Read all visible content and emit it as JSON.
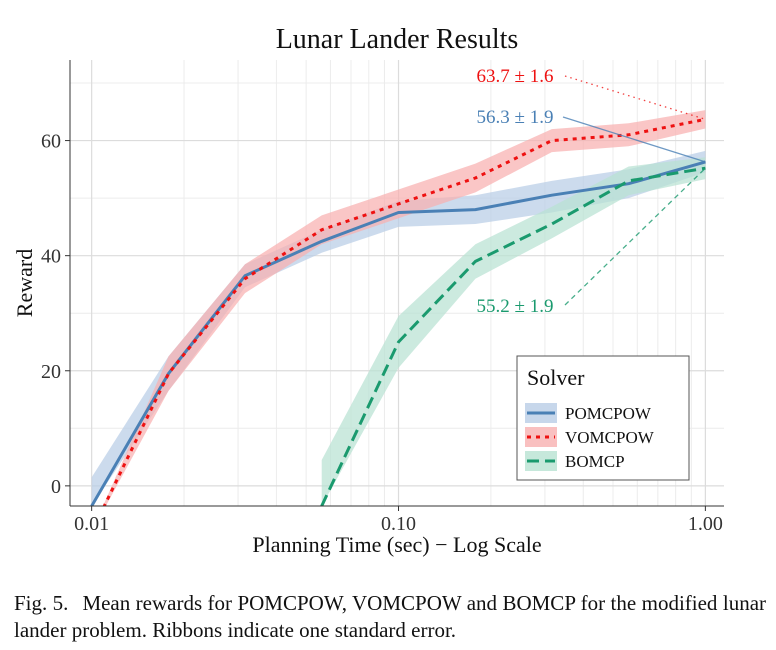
{
  "chart_data": {
    "type": "line",
    "title": "Lunar Lander Results",
    "xlabel": "Planning Time (sec) − Log Scale",
    "ylabel": "Reward",
    "xscale": "log",
    "xlim": [
      0.0085,
      1.15
    ],
    "ylim": [
      -3.5,
      74
    ],
    "xticks": [
      0.01,
      0.1,
      1.0
    ],
    "xtick_labels": [
      "0.01",
      "0.10",
      "1.00"
    ],
    "yticks": [
      0,
      20,
      40,
      60
    ],
    "ytick_labels": [
      "0",
      "20",
      "40",
      "60"
    ],
    "grid": true,
    "legend": {
      "title": "Solver",
      "placement": "bottom-right"
    },
    "series": [
      {
        "name": "POMCPOW",
        "color": "#4a80b5",
        "ribbon_color": "#b9cde6",
        "dash": "solid",
        "x": [
          0.01,
          0.0178,
          0.0316,
          0.0562,
          0.1,
          0.178,
          0.316,
          0.562,
          1.0
        ],
        "y": [
          -3.5,
          19.5,
          36.5,
          42.5,
          47.5,
          48.0,
          50.5,
          52.5,
          56.3
        ],
        "lower": [
          -3.5,
          16.5,
          34.5,
          40.5,
          45.0,
          45.5,
          47.5,
          50.0,
          54.5
        ],
        "upper": [
          1.5,
          22.5,
          38.5,
          44.5,
          49.5,
          50.5,
          53.0,
          55.0,
          58.2
        ]
      },
      {
        "name": "VOMCPOW",
        "color": "#ee1111",
        "ribbon_color": "#f8b0b0",
        "dash": "dot",
        "x": [
          0.01,
          0.0178,
          0.0316,
          0.0562,
          0.1,
          0.178,
          0.316,
          0.562,
          1.0
        ],
        "y": [
          -8,
          19.5,
          36.0,
          44.5,
          49.0,
          53.5,
          60.0,
          61.0,
          63.7
        ],
        "lower": [
          -8,
          16.5,
          33.5,
          42.0,
          46.5,
          51.0,
          58.0,
          59.0,
          62.1
        ],
        "upper": [
          -8,
          22.5,
          38.5,
          47.0,
          51.5,
          56.0,
          62.0,
          63.0,
          65.3
        ]
      },
      {
        "name": "BOMCP",
        "color": "#1a9a6e",
        "ribbon_color": "#b8e2d2",
        "dash": "dash",
        "x": [
          0.0562,
          0.1,
          0.178,
          0.316,
          0.562,
          1.0
        ],
        "y": [
          -3.5,
          25.0,
          39.0,
          45.5,
          53.0,
          55.2
        ],
        "lower": [
          -3.5,
          20.5,
          36.0,
          43.0,
          50.5,
          53.3
        ],
        "upper": [
          4.5,
          29.5,
          42.0,
          48.5,
          55.5,
          57.1
        ]
      }
    ],
    "annotations": [
      {
        "text": "63.7 ± 1.6",
        "series": "VOMCPOW",
        "color": "#ee1111",
        "line": "dotted"
      },
      {
        "text": "56.3 ± 1.9",
        "series": "POMCPOW",
        "color": "#4a80b5",
        "line": "solid"
      },
      {
        "text": "55.2 ± 1.9",
        "series": "BOMCP",
        "color": "#1a9a6e",
        "line": "dashed"
      }
    ]
  },
  "caption": {
    "label": "Fig. 5.",
    "text": "Mean rewards for POMCPOW, VOMCPOW and BOMCP for the modified lunar lander problem. Ribbons indicate one standard error."
  }
}
